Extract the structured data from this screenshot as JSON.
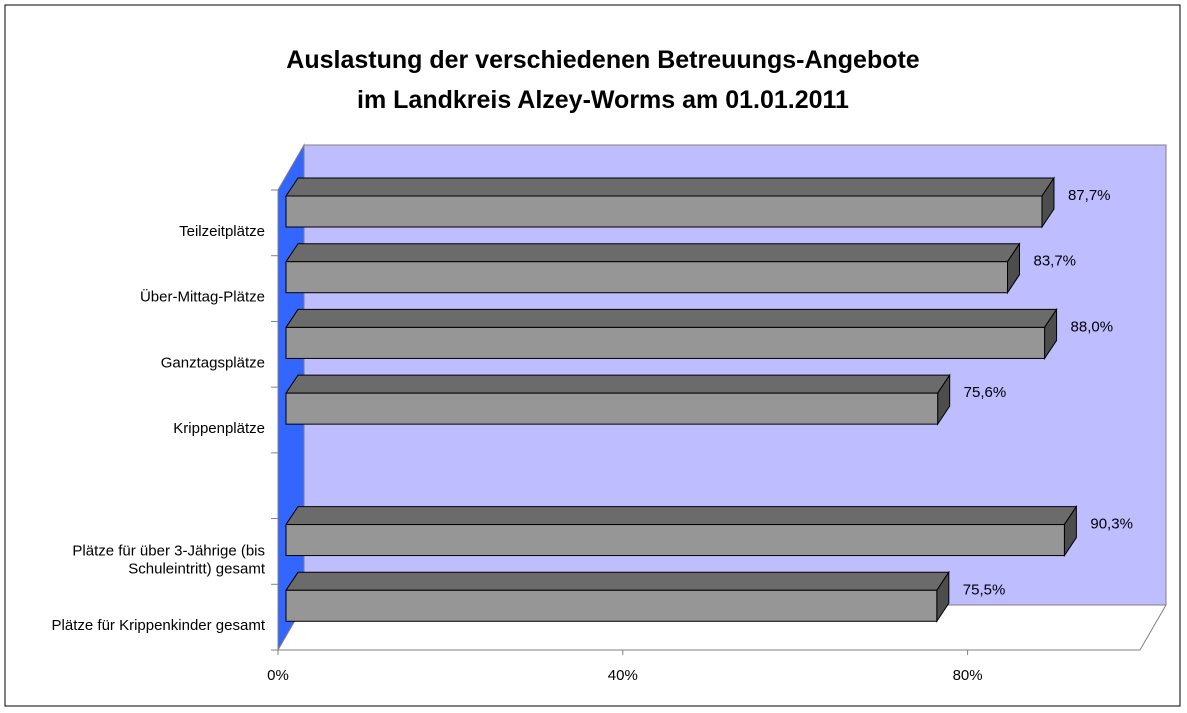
{
  "chart_data": {
    "type": "bar3d-horizontal",
    "title": [
      "Auslastung der verschiedenen Betreuungs-Angebote",
      "im Landkreis Alzey-Worms am 01.01.2011"
    ],
    "categories": [
      "Teilzeitplätze",
      "Über-Mittag-Plätze",
      "Ganztagsplätze",
      "Krippenplätze",
      null,
      "Plätze für über 3-Jährige (bis Schuleintritt) gesamt",
      "Plätze für Krippenkinder gesamt"
    ],
    "values": [
      87.7,
      83.7,
      88.0,
      75.6,
      null,
      90.3,
      75.5
    ],
    "value_labels": [
      "87,7%",
      "83,7%",
      "88,0%",
      "75,6%",
      null,
      "90,3%",
      "75,5%"
    ],
    "color": "#969696",
    "xlim": [
      0,
      100
    ],
    "xticks": [
      {
        "value": 0,
        "label": "0%"
      },
      {
        "value": 40,
        "label": "40%"
      },
      {
        "value": 80,
        "label": "80%"
      }
    ],
    "wall_color": "#bdbdff",
    "side_wall_color": "#3366ff"
  }
}
